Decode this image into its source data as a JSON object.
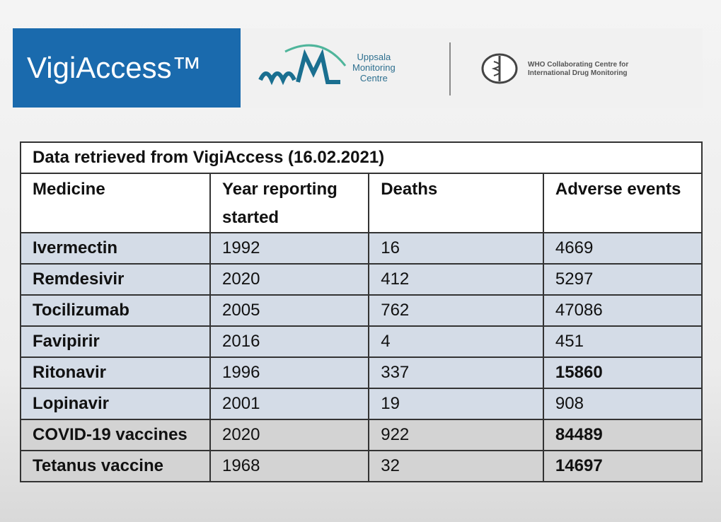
{
  "header": {
    "brand": "VigiAccess™",
    "umc": [
      "Uppsala",
      "Monitoring",
      "Centre"
    ],
    "who": [
      "WHO Collaborating Centre for",
      "International Drug Monitoring"
    ]
  },
  "table": {
    "caption": "Data retrieved from VigiAccess (16.02.2021)",
    "columns": [
      "Medicine",
      "Year reporting started",
      "Deaths",
      "Adverse events"
    ],
    "rows": [
      [
        "Ivermectin",
        1992,
        16,
        4669
      ],
      [
        "Remdesivir",
        2020,
        412,
        5297
      ],
      [
        "Tocilizumab",
        2005,
        762,
        47086
      ],
      [
        "Favipirir",
        2016,
        4,
        451
      ],
      [
        "Ritonavir",
        1996,
        337,
        15860
      ],
      [
        "Lopinavir",
        2001,
        19,
        908
      ],
      [
        "COVID-19 vaccines",
        2020,
        922,
        84489
      ],
      [
        "Tetanus vaccine",
        1968,
        32,
        14697
      ]
    ]
  }
}
